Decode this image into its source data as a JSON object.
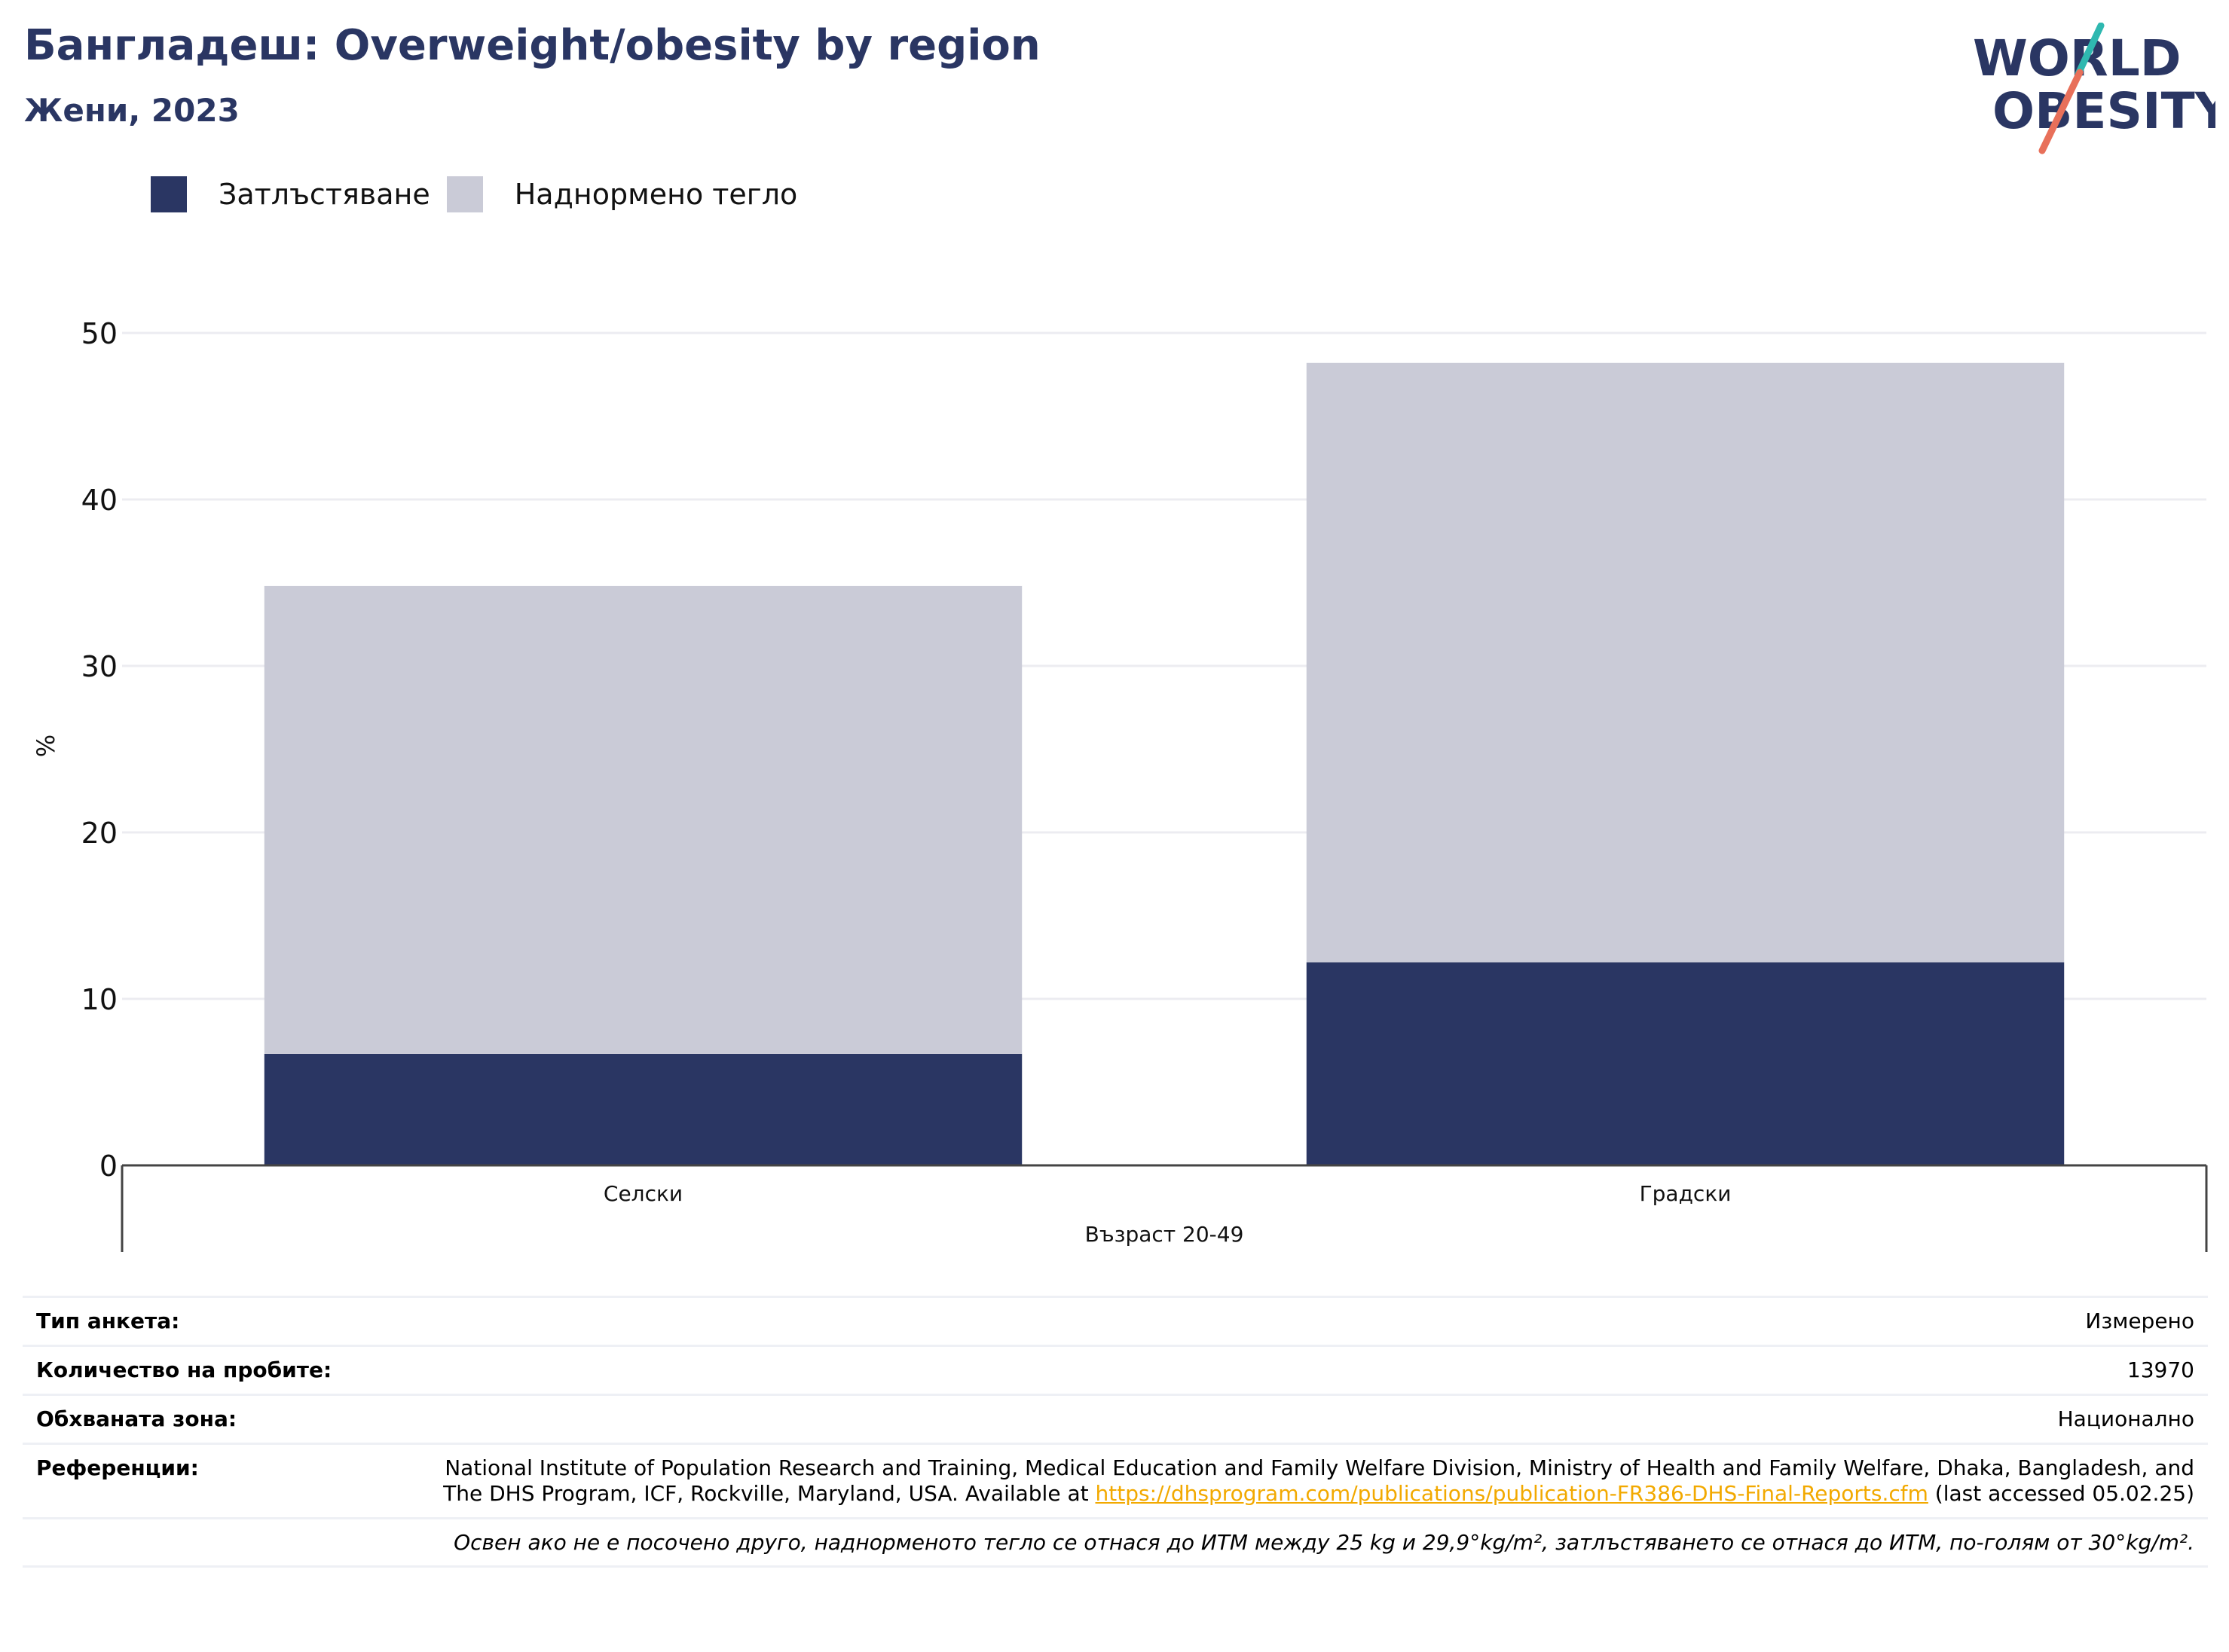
{
  "header": {
    "title": "Бангладеш: Overweight/obesity by region",
    "subtitle": "Жени, 2023"
  },
  "logo": {
    "line1": "WORLD",
    "line2": "OBESITY"
  },
  "colors": {
    "obesity": "#2a3663",
    "overweight": "#cacbd7",
    "title": "#2a3663",
    "link": "#f2a900",
    "logo_teal": "#2fb8b0",
    "logo_coral": "#e8705a"
  },
  "legend": [
    {
      "label": "Затлъстяване",
      "color": "#2a3663"
    },
    {
      "label": "Наднормено тегло",
      "color": "#cacbd7"
    }
  ],
  "chart_data": {
    "type": "bar",
    "stacked": true,
    "categories": [
      "Селски",
      "Градски"
    ],
    "group_label": "Възраст 20-49",
    "series": [
      {
        "name": "Затлъстяване",
        "values": [
          6.7,
          12.2
        ]
      },
      {
        "name": "Наднормено тегло",
        "values": [
          28.1,
          36.0
        ]
      }
    ],
    "ylabel": "%",
    "ylim": [
      0,
      50
    ],
    "yticks": [
      0,
      10,
      20,
      30,
      40,
      50
    ],
    "grid": true,
    "legend_position": "top-left"
  },
  "info": {
    "survey_type_label": "Тип анкета:",
    "survey_type_value": "Измерено",
    "sample_size_label": "Количество на пробите:",
    "sample_size_value": "13970",
    "area_label": "Обхваната зона:",
    "area_value": "Национално",
    "references_label": "Референции:",
    "references_text": "National Institute of Population Research and Training, Medical Education and Family Welfare Division, Ministry of Health and Family Welfare, Dhaka, Bangladesh, and The DHS Program, ICF, Rockville, Maryland, USA. Available at ",
    "references_link": "https://dhsprogram.com/publications/publication-FR386-DHS-Final-Reports.cfm",
    "references_suffix": " (last accessed 05.02.25)",
    "note": "Освен ако не е посочено друго, наднорменото тегло се отнася до ИТМ между 25 kg и 29,9°kg/m², затлъстяването се отнася до ИТМ, по-голям от 30°kg/m²."
  }
}
